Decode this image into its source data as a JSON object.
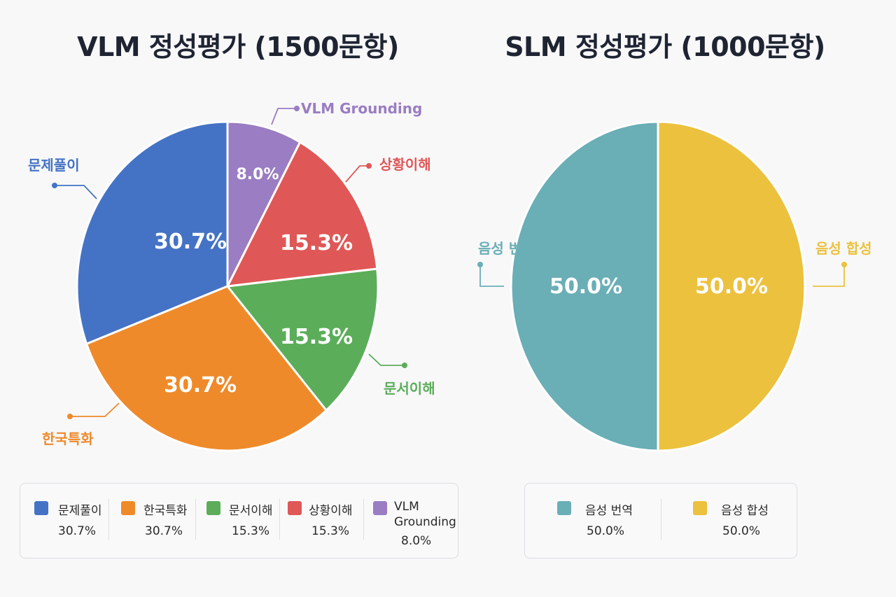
{
  "chart_data": [
    {
      "type": "pie",
      "title": "VLM 정성평가 (1500문항)",
      "categories": [
        "문제풀이",
        "한국특화",
        "문서이해",
        "상황이해",
        "VLM Grounding"
      ],
      "values": [
        30.7,
        30.7,
        15.3,
        15.3,
        8.0
      ],
      "value_labels": [
        "30.7%",
        "30.7%",
        "15.3%",
        "15.3%",
        "8.0%"
      ],
      "colors": [
        "#4473c5",
        "#ef8a2a",
        "#5cad5a",
        "#e05757",
        "#9a7dc2"
      ],
      "legend": {
        "placement": "bottom",
        "items": [
          {
            "label": "문제풀이",
            "value": "30.7%"
          },
          {
            "label": "한국특화",
            "value": "30.7%"
          },
          {
            "label": "문서이해",
            "value": "15.3%"
          },
          {
            "label": "상황이해",
            "value": "15.3%"
          },
          {
            "label": "VLM Grounding",
            "value": "8.0%"
          }
        ]
      }
    },
    {
      "type": "pie",
      "title": "SLM 정성평가 (1000문항)",
      "categories": [
        "음성 번역",
        "음성 합성"
      ],
      "values": [
        50.0,
        50.0
      ],
      "value_labels": [
        "50.0%",
        "50.0%"
      ],
      "colors": [
        "#6aaeb6",
        "#ecc13e"
      ],
      "legend": {
        "placement": "bottom",
        "items": [
          {
            "label": "음성 번역",
            "value": "50.0%"
          },
          {
            "label": "음성 합성",
            "value": "50.0%"
          }
        ]
      }
    }
  ]
}
